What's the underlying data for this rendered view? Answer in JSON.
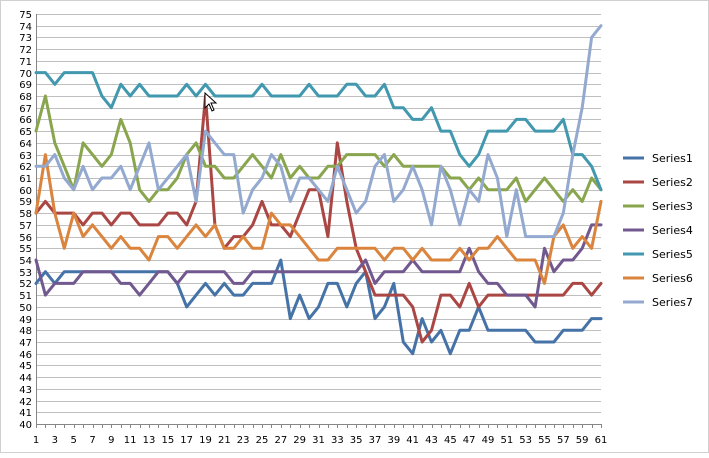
{
  "chart_data": {
    "type": "line",
    "title": "",
    "xlabel": "",
    "ylabel": "",
    "ylim": [
      40,
      75
    ],
    "yticks": [
      40,
      41,
      42,
      43,
      44,
      45,
      46,
      47,
      48,
      49,
      50,
      51,
      52,
      53,
      54,
      55,
      56,
      57,
      58,
      59,
      60,
      61,
      62,
      63,
      64,
      65,
      66,
      67,
      68,
      69,
      70,
      71,
      72,
      73,
      74,
      75
    ],
    "x": [
      1,
      2,
      3,
      4,
      5,
      6,
      7,
      8,
      9,
      10,
      11,
      12,
      13,
      14,
      15,
      16,
      17,
      18,
      19,
      20,
      21,
      22,
      23,
      24,
      25,
      26,
      27,
      28,
      29,
      30,
      31,
      32,
      33,
      34,
      35,
      36,
      37,
      38,
      39,
      40,
      41,
      42,
      43,
      44,
      45,
      46,
      47,
      48,
      49,
      50,
      51,
      52,
      53,
      54,
      55,
      56,
      57,
      58,
      59,
      60,
      61
    ],
    "xtick_labels": [
      1,
      3,
      5,
      7,
      9,
      11,
      13,
      15,
      17,
      19,
      21,
      23,
      25,
      27,
      29,
      31,
      33,
      35,
      37,
      39,
      41,
      43,
      45,
      47,
      49,
      51,
      53,
      55,
      57,
      59,
      61
    ],
    "grid": "horizontal",
    "legend_position": "right",
    "series": [
      {
        "name": "Series1",
        "color": "#4572A7",
        "values": [
          52,
          53,
          52,
          53,
          53,
          53,
          53,
          53,
          53,
          53,
          53,
          53,
          53,
          53,
          53,
          52,
          50,
          51,
          52,
          51,
          52,
          51,
          51,
          52,
          52,
          52,
          54,
          49,
          51,
          49,
          50,
          52,
          52,
          50,
          52,
          53,
          49,
          50,
          52,
          47,
          46,
          49,
          47,
          48,
          46,
          48,
          48,
          50,
          48,
          48,
          48,
          48,
          48,
          47,
          47,
          47,
          48,
          48,
          48,
          49,
          49
        ]
      },
      {
        "name": "Series2",
        "color": "#AA4643",
        "values": [
          58,
          59,
          58,
          58,
          58,
          57,
          58,
          58,
          57,
          58,
          58,
          57,
          57,
          57,
          58,
          58,
          57,
          59,
          68,
          57,
          55,
          56,
          56,
          57,
          59,
          57,
          57,
          56,
          58,
          60,
          60,
          56,
          64,
          59,
          55,
          53,
          51,
          51,
          51,
          51,
          50,
          47,
          48,
          51,
          51,
          50,
          52,
          50,
          51,
          51,
          51,
          51,
          51,
          51,
          51,
          51,
          51,
          52,
          52,
          51,
          52
        ]
      },
      {
        "name": "Series3",
        "color": "#89A54E",
        "values": [
          65,
          68,
          64,
          62,
          60,
          64,
          63,
          62,
          63,
          66,
          64,
          60,
          59,
          60,
          60,
          61,
          63,
          64,
          62,
          62,
          61,
          61,
          62,
          63,
          62,
          61,
          63,
          61,
          62,
          61,
          61,
          62,
          62,
          63,
          63,
          63,
          63,
          62,
          63,
          62,
          62,
          62,
          62,
          62,
          61,
          61,
          60,
          61,
          60,
          60,
          60,
          61,
          59,
          60,
          61,
          60,
          59,
          60,
          59,
          61,
          60
        ]
      },
      {
        "name": "Series4",
        "color": "#71588F",
        "values": [
          54,
          51,
          52,
          52,
          52,
          53,
          53,
          53,
          53,
          52,
          52,
          51,
          52,
          53,
          53,
          52,
          53,
          53,
          53,
          53,
          53,
          52,
          52,
          53,
          53,
          53,
          53,
          53,
          53,
          53,
          53,
          53,
          53,
          53,
          53,
          54,
          52,
          53,
          53,
          53,
          54,
          53,
          53,
          53,
          53,
          53,
          55,
          53,
          52,
          52,
          51,
          51,
          51,
          50,
          55,
          53,
          54,
          54,
          55,
          57,
          57
        ]
      },
      {
        "name": "Series5",
        "color": "#4198AF",
        "values": [
          70,
          70,
          69,
          70,
          70,
          70,
          70,
          68,
          67,
          69,
          68,
          69,
          68,
          68,
          68,
          68,
          69,
          68,
          69,
          68,
          68,
          68,
          68,
          68,
          69,
          68,
          68,
          68,
          68,
          69,
          68,
          68,
          68,
          69,
          69,
          68,
          68,
          69,
          67,
          67,
          66,
          66,
          67,
          65,
          65,
          63,
          62,
          63,
          65,
          65,
          65,
          66,
          66,
          65,
          65,
          65,
          66,
          63,
          63,
          62,
          60
        ]
      },
      {
        "name": "Series6",
        "color": "#DB843D",
        "values": [
          58,
          63,
          58,
          55,
          58,
          56,
          57,
          56,
          55,
          56,
          55,
          55,
          54,
          56,
          56,
          55,
          56,
          57,
          56,
          57,
          55,
          55,
          56,
          55,
          55,
          58,
          57,
          57,
          56,
          55,
          54,
          54,
          55,
          55,
          55,
          55,
          55,
          54,
          55,
          55,
          54,
          55,
          54,
          54,
          54,
          55,
          54,
          55,
          55,
          56,
          55,
          54,
          54,
          54,
          52,
          56,
          57,
          55,
          56,
          55,
          59
        ]
      },
      {
        "name": "Series7",
        "color": "#93A9CF",
        "values": [
          62,
          62,
          63,
          61,
          60,
          62,
          60,
          61,
          61,
          62,
          60,
          62,
          64,
          60,
          61,
          62,
          63,
          59,
          65,
          64,
          63,
          63,
          58,
          60,
          61,
          63,
          62,
          59,
          61,
          61,
          60,
          59,
          62,
          60,
          58,
          59,
          62,
          63,
          59,
          60,
          62,
          60,
          57,
          62,
          60,
          57,
          60,
          59,
          63,
          61,
          56,
          60,
          56,
          56,
          56,
          56,
          58,
          63,
          67,
          73,
          74
        ]
      }
    ]
  }
}
